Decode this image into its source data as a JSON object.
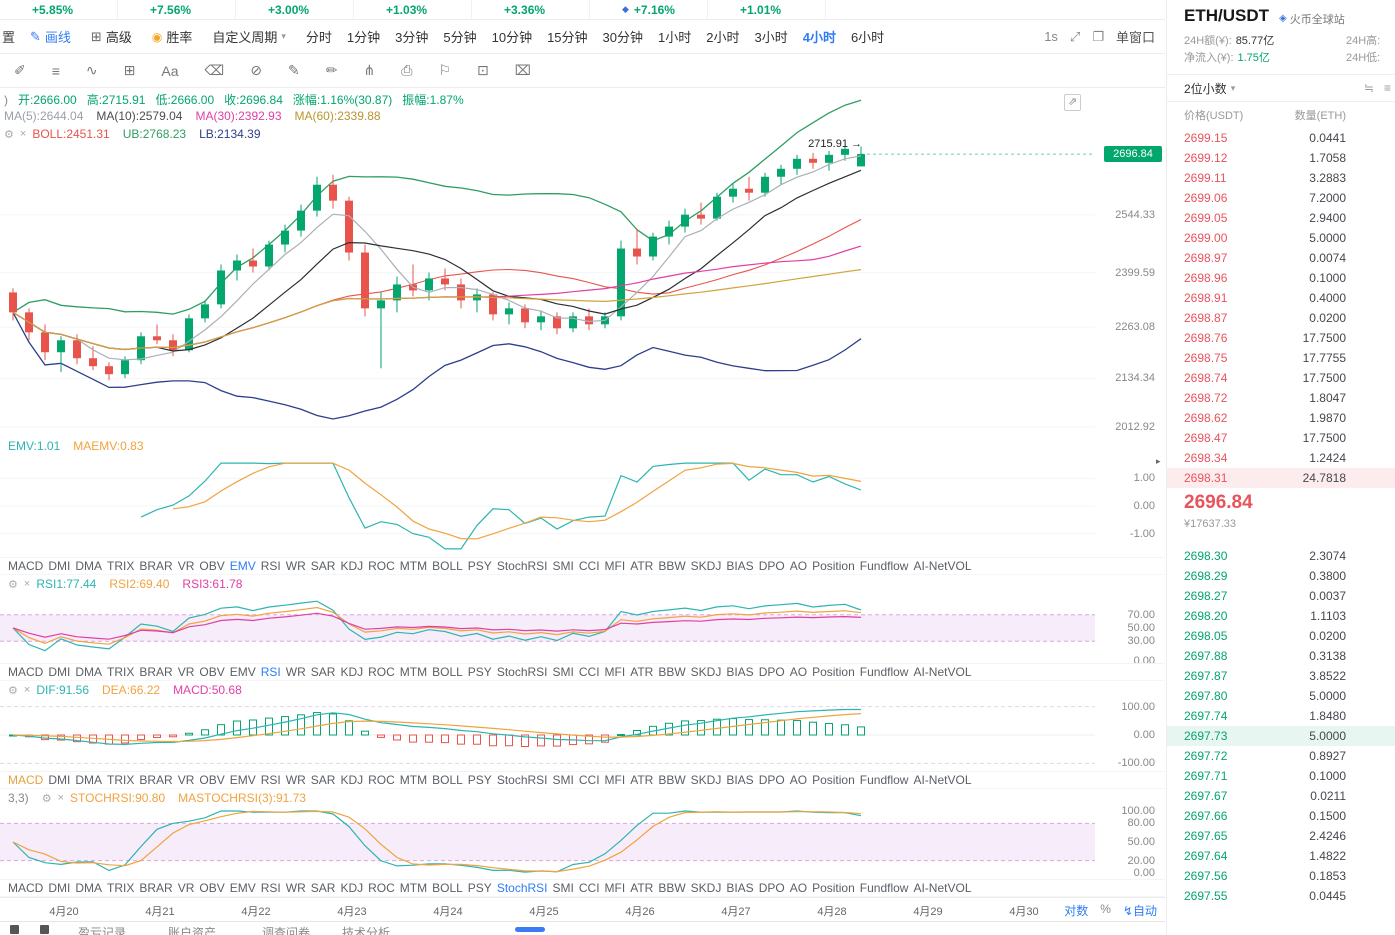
{
  "colors": {
    "up": "#03a66d",
    "down": "#e8544b",
    "ub": "#2e9e63",
    "lb": "#2b3f8c",
    "boll": "#e8544b",
    "magenta": "#e03fa4",
    "teal": "#2cb5b0",
    "orange": "#f0a33f",
    "blue": "#2f7cf6",
    "ma5": "#aab0b8",
    "ma10": "#2b2e33",
    "ma60": "#cfa53a"
  },
  "ticker_bar": {
    "items": [
      {
        "pct": "+5.85%"
      },
      {
        "pct": "+7.56%"
      },
      {
        "pct": "+3.00%"
      },
      {
        "pct": "+1.03%"
      },
      {
        "pct": "+3.36%"
      },
      {
        "pct": "+7.16%",
        "has_icon": true
      },
      {
        "pct": "+1.01%"
      }
    ]
  },
  "toolbar": {
    "cut_label": "置",
    "draw_line": "画线",
    "advanced": "高级",
    "win_rate": "胜率",
    "custom_period": "自定义周期",
    "periods": [
      "分时",
      "1分钟",
      "3分钟",
      "5分钟",
      "10分钟",
      "15分钟",
      "30分钟",
      "1小时",
      "2小时",
      "3小时",
      "4小时",
      "6小时"
    ],
    "active_period": "4小时",
    "seconds_label": "1s",
    "single_window": "单窗口"
  },
  "draw_tools": [
    {
      "name": "cursor-tool-icon",
      "glyph": "✐"
    },
    {
      "name": "line-tools-icon",
      "glyph": "≡"
    },
    {
      "name": "wave-tool-icon",
      "glyph": "∿"
    },
    {
      "name": "shape-tool-icon",
      "glyph": "⊞"
    },
    {
      "name": "text-tool-icon",
      "glyph": "Aa"
    },
    {
      "name": "eraser-tool-icon",
      "glyph": "⌫"
    },
    {
      "name": "circle-tool-icon",
      "glyph": "⊘"
    },
    {
      "name": "pencil-tool-icon",
      "glyph": "✎"
    },
    {
      "name": "pen-tool-icon",
      "glyph": "✏"
    },
    {
      "name": "pattern-tool-icon",
      "glyph": "⋔"
    },
    {
      "name": "screenshot-tool-icon",
      "glyph": "⎙"
    },
    {
      "name": "flag-tool-icon",
      "glyph": "⚐"
    },
    {
      "name": "note-tool-icon",
      "glyph": "⊡"
    },
    {
      "name": "delete-tool-icon",
      "glyph": "⌧"
    }
  ],
  "main_chart": {
    "ohlc_prefix": ")",
    "ohlc": [
      "开:2666.00",
      "高:2715.91",
      "低:2666.00",
      "收:2696.84",
      "涨幅:1.16%(30.87)",
      "振幅:1.87%"
    ],
    "ma_legend": [
      {
        "text": "MA(5):2644.04",
        "color": "#9aa0a6"
      },
      {
        "text": "MA(10):2579.04",
        "color": "#4a4d52"
      },
      {
        "text": "MA(30):2392.93",
        "color": "#e03fa4"
      },
      {
        "text": "MA(60):2339.88",
        "color": "#b8952f"
      }
    ],
    "boll_legend": [
      {
        "text": "BOLL:2451.31",
        "color": "#e8544b"
      },
      {
        "text": "UB:2768.23",
        "color": "#2e9e63"
      },
      {
        "text": "LB:2134.39",
        "color": "#2b3f8c"
      }
    ],
    "axis_labels": [
      {
        "text": "2544.33",
        "v": 2544.33
      },
      {
        "text": "2399.59",
        "v": 2399.59
      },
      {
        "text": "2263.08",
        "v": 2263.08
      },
      {
        "text": "2134.34",
        "v": 2134.34
      },
      {
        "text": "2012.92",
        "v": 2012.92
      }
    ],
    "current_price": {
      "text": "2696.84",
      "v": 2696.84
    },
    "high_annotation": {
      "text": "2715.91 →",
      "v": 2715.91
    }
  },
  "indicator_tabs": [
    "MACD",
    "DMI",
    "DMA",
    "TRIX",
    "BRAR",
    "VR",
    "OBV",
    "EMV",
    "RSI",
    "WR",
    "SAR",
    "KDJ",
    "ROC",
    "MTM",
    "BOLL",
    "PSY",
    "StochRSI",
    "SMI",
    "CCI",
    "MFI",
    "ATR",
    "BBW",
    "SKDJ",
    "BIAS",
    "DPO",
    "AO",
    "Position",
    "Fundflow",
    "AI-NetVOL"
  ],
  "panels": {
    "emv": {
      "legend": [
        {
          "text": "EMV:1.01",
          "color": "#2cb5b0"
        },
        {
          "text": "MAEMV:0.83",
          "color": "#f0a33f"
        }
      ],
      "axis": [
        {
          "text": "1.00",
          "v": 1
        },
        {
          "text": "0.00",
          "v": 0
        },
        {
          "text": "-1.00",
          "v": -1
        }
      ],
      "active_tab": "EMV",
      "active_color": "#2f7cf6"
    },
    "rsi": {
      "legend": [
        {
          "text": "RSI1:77.44",
          "color": "#2cb5b0"
        },
        {
          "text": "RSI2:69.40",
          "color": "#f0a33f"
        },
        {
          "text": "RSI3:61.78",
          "color": "#e03fa4"
        }
      ],
      "axis": [
        {
          "text": "70.00",
          "v": 70
        },
        {
          "text": "50.00",
          "v": 50
        },
        {
          "text": "30.00",
          "v": 30
        },
        {
          "text": "0.00",
          "v": 0
        }
      ],
      "active_tab": "RSI",
      "active_color": "#2f7cf6"
    },
    "macd": {
      "legend": [
        {
          "text": "DIF:91.56",
          "color": "#2cb5b0"
        },
        {
          "text": "DEA:66.22",
          "color": "#f0a33f"
        },
        {
          "text": "MACD:50.68",
          "color": "#e03fa4"
        }
      ],
      "axis": [
        {
          "text": "100.00",
          "v": 100
        },
        {
          "text": "0.00",
          "v": 0
        },
        {
          "text": "-100.00",
          "v": -100
        }
      ],
      "active_tab": "MACD",
      "active_color": "#e6a23c"
    },
    "stoch": {
      "cut_prefix": "3,3)",
      "legend": [
        {
          "text": "STOCHRSI:90.80",
          "color": "#f0a33f"
        },
        {
          "text": "MASTOCHRSI(3):91.73",
          "color": "#f0a33f"
        }
      ],
      "axis": [
        {
          "text": "100.00",
          "v": 100
        },
        {
          "text": "80.00",
          "v": 80
        },
        {
          "text": "50.00",
          "v": 50
        },
        {
          "text": "20.00",
          "v": 20
        },
        {
          "text": "0.00",
          "v": 0
        }
      ],
      "active_tab": "StochRSI",
      "active_color": "#2f7cf6"
    }
  },
  "date_axis": {
    "labels": [
      "4月20",
      "4月21",
      "4月22",
      "4月23",
      "4月24",
      "4月25",
      "4月26",
      "4月27",
      "4月28",
      "4月29",
      "4月30"
    ],
    "controls": [
      "对数",
      "%",
      "自动"
    ]
  },
  "sidebar": {
    "pair": "ETH/USDT",
    "venue": "火币全球站",
    "stats": [
      {
        "label": "24H额(¥):",
        "value": "85.77亿"
      },
      {
        "label": "24H高:",
        "value": ""
      },
      {
        "label": "净流入(¥):",
        "value": "1.75亿",
        "green": true
      },
      {
        "label": "24H低:",
        "value": ""
      }
    ],
    "precision": "2位小数",
    "columns": [
      "价格(USDT)",
      "数量(ETH)"
    ]
  },
  "order_book": {
    "asks": [
      {
        "p": "2699.15",
        "a": "0.0441"
      },
      {
        "p": "2699.12",
        "a": "1.7058"
      },
      {
        "p": "2699.11",
        "a": "3.2883"
      },
      {
        "p": "2699.06",
        "a": "7.2000"
      },
      {
        "p": "2699.05",
        "a": "2.9400"
      },
      {
        "p": "2699.00",
        "a": "5.0000"
      },
      {
        "p": "2698.97",
        "a": "0.0074"
      },
      {
        "p": "2698.96",
        "a": "0.1000"
      },
      {
        "p": "2698.91",
        "a": "0.4000"
      },
      {
        "p": "2698.87",
        "a": "0.0200"
      },
      {
        "p": "2698.76",
        "a": "17.7500"
      },
      {
        "p": "2698.75",
        "a": "17.7755"
      },
      {
        "p": "2698.74",
        "a": "17.7500"
      },
      {
        "p": "2698.72",
        "a": "1.8047"
      },
      {
        "p": "2698.62",
        "a": "1.9870"
      },
      {
        "p": "2698.47",
        "a": "17.7500"
      },
      {
        "p": "2698.34",
        "a": "1.2424"
      },
      {
        "p": "2698.31",
        "a": "24.7818",
        "hl": true
      }
    ],
    "last_price": "2696.84",
    "last_price_cny": "¥17637.33",
    "bids": [
      {
        "p": "2698.30",
        "a": "2.3074"
      },
      {
        "p": "2698.29",
        "a": "0.3800"
      },
      {
        "p": "2698.27",
        "a": "0.0037"
      },
      {
        "p": "2698.20",
        "a": "1.1103"
      },
      {
        "p": "2698.05",
        "a": "0.0200"
      },
      {
        "p": "2697.88",
        "a": "0.3138"
      },
      {
        "p": "2697.87",
        "a": "3.8522"
      },
      {
        "p": "2697.80",
        "a": "5.0000"
      },
      {
        "p": "2697.74",
        "a": "1.8480"
      },
      {
        "p": "2697.73",
        "a": "5.0000",
        "hl": true
      },
      {
        "p": "2697.72",
        "a": "0.8927"
      },
      {
        "p": "2697.71",
        "a": "0.1000"
      },
      {
        "p": "2697.67",
        "a": "0.0211"
      },
      {
        "p": "2697.66",
        "a": "0.1500"
      },
      {
        "p": "2697.65",
        "a": "2.4246"
      },
      {
        "p": "2697.64",
        "a": "1.4822"
      },
      {
        "p": "2697.56",
        "a": "0.1853"
      },
      {
        "p": "2697.55",
        "a": "0.0445"
      }
    ]
  },
  "bottom_bar": {
    "items": [
      "盈亏记录",
      "账户资产",
      "调查问卷",
      "技术分析"
    ]
  },
  "chart_data": {
    "type": "candlestick",
    "pair": "ETH/USDT",
    "timeframe": "4小时",
    "ohlc_last": {
      "open": 2666.0,
      "high": 2715.91,
      "low": 2666.0,
      "close": 2696.84,
      "change_pct": "1.16%",
      "change_abs": 30.87,
      "amplitude": "1.87%"
    },
    "indicators": {
      "MA5": 2644.04,
      "MA10": 2579.04,
      "MA30": 2392.93,
      "MA60": 2339.88,
      "BOLL": 2451.31,
      "UB": 2768.23,
      "LB": 2134.39,
      "EMV": 1.01,
      "MAEMV": 0.83,
      "RSI1": 77.44,
      "RSI2": 69.4,
      "RSI3": 61.78,
      "DIF": 91.56,
      "DEA": 66.22,
      "MACD": 50.68,
      "STOCHRSI": 90.8,
      "MASTOCHRSI3": 91.73
    },
    "price_axis": [
      2696.84,
      2544.33,
      2399.59,
      2263.08,
      2134.34,
      2012.92
    ],
    "candles": [
      [
        2350,
        2360,
        2280,
        2300
      ],
      [
        2300,
        2310,
        2230,
        2250
      ],
      [
        2250,
        2270,
        2180,
        2200
      ],
      [
        2200,
        2240,
        2150,
        2230
      ],
      [
        2230,
        2245,
        2170,
        2185
      ],
      [
        2185,
        2215,
        2155,
        2165
      ],
      [
        2165,
        2175,
        2130,
        2145
      ],
      [
        2145,
        2190,
        2135,
        2180
      ],
      [
        2180,
        2250,
        2170,
        2240
      ],
      [
        2240,
        2270,
        2220,
        2230
      ],
      [
        2230,
        2245,
        2190,
        2205
      ],
      [
        2205,
        2295,
        2200,
        2285
      ],
      [
        2285,
        2330,
        2275,
        2320
      ],
      [
        2320,
        2420,
        2310,
        2405
      ],
      [
        2405,
        2445,
        2380,
        2430
      ],
      [
        2430,
        2460,
        2400,
        2415
      ],
      [
        2415,
        2480,
        2405,
        2470
      ],
      [
        2470,
        2520,
        2450,
        2505
      ],
      [
        2505,
        2570,
        2490,
        2555
      ],
      [
        2555,
        2640,
        2540,
        2620
      ],
      [
        2620,
        2645,
        2560,
        2580
      ],
      [
        2580,
        2590,
        2430,
        2450
      ],
      [
        2450,
        2470,
        2290,
        2310
      ],
      [
        2310,
        2350,
        2160,
        2330
      ],
      [
        2330,
        2390,
        2300,
        2370
      ],
      [
        2370,
        2420,
        2340,
        2355
      ],
      [
        2355,
        2400,
        2330,
        2385
      ],
      [
        2385,
        2410,
        2355,
        2370
      ],
      [
        2370,
        2385,
        2310,
        2330
      ],
      [
        2330,
        2360,
        2300,
        2345
      ],
      [
        2345,
        2350,
        2280,
        2295
      ],
      [
        2295,
        2325,
        2270,
        2310
      ],
      [
        2310,
        2320,
        2260,
        2275
      ],
      [
        2275,
        2305,
        2255,
        2290
      ],
      [
        2290,
        2300,
        2245,
        2260
      ],
      [
        2260,
        2300,
        2250,
        2290
      ],
      [
        2290,
        2310,
        2255,
        2270
      ],
      [
        2270,
        2300,
        2260,
        2290
      ],
      [
        2290,
        2480,
        2280,
        2460
      ],
      [
        2460,
        2510,
        2420,
        2440
      ],
      [
        2440,
        2500,
        2430,
        2490
      ],
      [
        2490,
        2530,
        2470,
        2515
      ],
      [
        2515,
        2560,
        2500,
        2545
      ],
      [
        2545,
        2575,
        2520,
        2535
      ],
      [
        2535,
        2600,
        2530,
        2590
      ],
      [
        2590,
        2625,
        2575,
        2610
      ],
      [
        2610,
        2640,
        2580,
        2600
      ],
      [
        2600,
        2650,
        2590,
        2640
      ],
      [
        2640,
        2670,
        2620,
        2660
      ],
      [
        2660,
        2695,
        2645,
        2685
      ],
      [
        2685,
        2700,
        2660,
        2675
      ],
      [
        2675,
        2705,
        2655,
        2695
      ],
      [
        2695,
        2715.91,
        2680,
        2710
      ],
      [
        2666,
        2715.91,
        2666,
        2696.84
      ]
    ]
  }
}
